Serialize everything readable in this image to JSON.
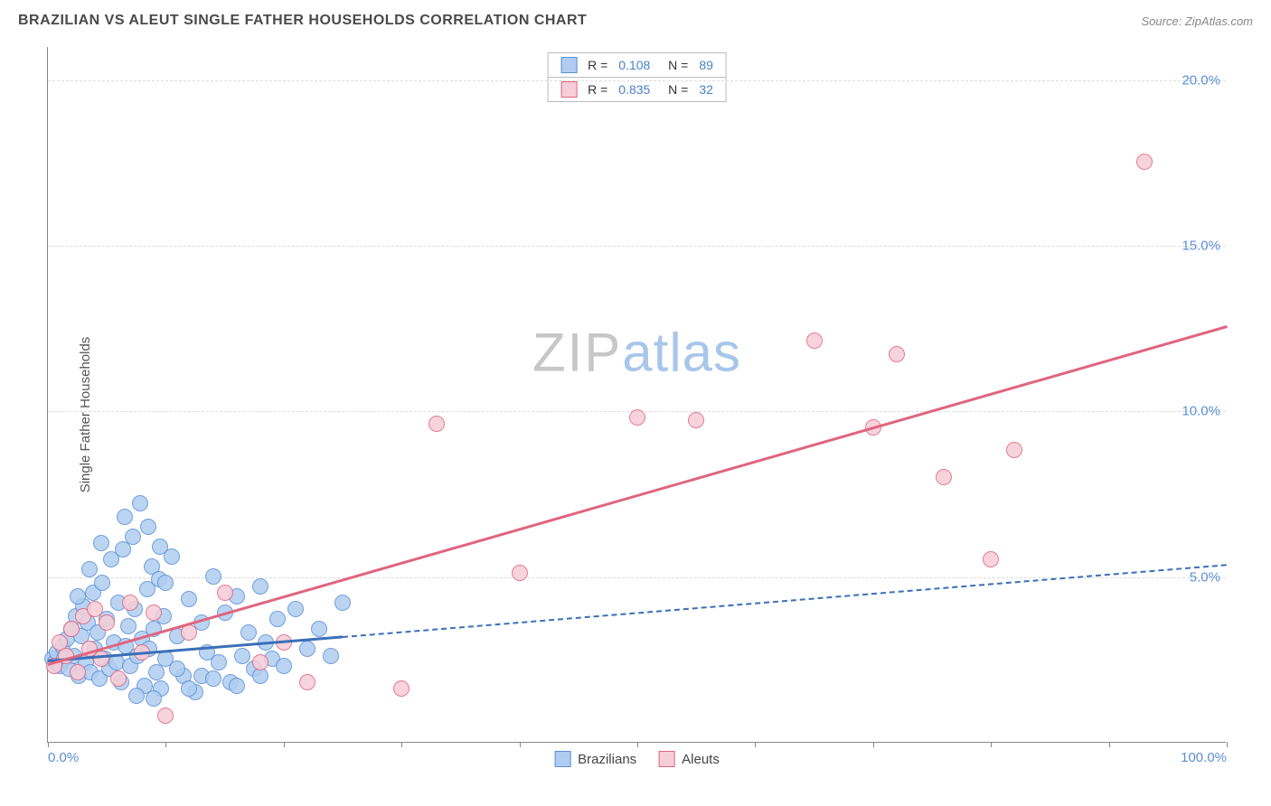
{
  "title": "BRAZILIAN VS ALEUT SINGLE FATHER HOUSEHOLDS CORRELATION CHART",
  "source": "Source: ZipAtlas.com",
  "ylabel": "Single Father Households",
  "watermark": {
    "part1": "ZIP",
    "part2": "atlas"
  },
  "chart": {
    "type": "scatter",
    "background_color": "#ffffff",
    "grid_color": "#dddddd",
    "grid_dash": true,
    "axis_color": "#888888",
    "label_color": "#5b8fd6",
    "label_fontsize": 15,
    "xlim": [
      0,
      100
    ],
    "ylim": [
      0,
      21
    ],
    "xticks": [
      0,
      10,
      20,
      30,
      40,
      50,
      60,
      70,
      80,
      90,
      100
    ],
    "xtick_labels_shown": {
      "0": "0.0%",
      "100": "100.0%"
    },
    "yticks": [
      5,
      10,
      15,
      20
    ],
    "ytick_labels": {
      "5": "5.0%",
      "10": "10.0%",
      "15": "15.0%",
      "20": "20.0%"
    },
    "marker_radius": 9,
    "marker_stroke_width": 1.5,
    "marker_fill_opacity": 0.3,
    "series": [
      {
        "name": "Brazilians",
        "color_fill": "#aecdf0",
        "color_stroke": "#5b8fd6",
        "R": "0.108",
        "N": "89",
        "trendline": {
          "x1": 0,
          "y1": 2.5,
          "x2": 100,
          "y2": 5.4,
          "color": "#3b6fb8",
          "width": 2.5,
          "solid_until_x": 25
        },
        "points": [
          [
            0.4,
            2.5
          ],
          [
            0.6,
            2.4
          ],
          [
            0.8,
            2.7
          ],
          [
            1.0,
            2.3
          ],
          [
            1.2,
            2.9
          ],
          [
            1.4,
            2.5
          ],
          [
            1.6,
            3.1
          ],
          [
            1.8,
            2.2
          ],
          [
            2.0,
            3.4
          ],
          [
            2.2,
            2.6
          ],
          [
            2.4,
            3.8
          ],
          [
            2.6,
            2.0
          ],
          [
            2.8,
            3.2
          ],
          [
            3.0,
            4.1
          ],
          [
            3.2,
            2.4
          ],
          [
            3.4,
            3.6
          ],
          [
            3.6,
            2.1
          ],
          [
            3.8,
            4.5
          ],
          [
            4.0,
            2.8
          ],
          [
            4.2,
            3.3
          ],
          [
            4.4,
            1.9
          ],
          [
            4.6,
            4.8
          ],
          [
            4.8,
            2.5
          ],
          [
            5.0,
            3.7
          ],
          [
            5.2,
            2.2
          ],
          [
            5.4,
            5.5
          ],
          [
            5.6,
            3.0
          ],
          [
            5.8,
            2.4
          ],
          [
            6.0,
            4.2
          ],
          [
            6.2,
            1.8
          ],
          [
            6.4,
            5.8
          ],
          [
            6.6,
            2.9
          ],
          [
            6.8,
            3.5
          ],
          [
            7.0,
            2.3
          ],
          [
            7.2,
            6.2
          ],
          [
            7.4,
            4.0
          ],
          [
            7.6,
            2.6
          ],
          [
            7.8,
            7.2
          ],
          [
            8.0,
            3.1
          ],
          [
            8.2,
            1.7
          ],
          [
            8.4,
            4.6
          ],
          [
            8.6,
            2.8
          ],
          [
            8.8,
            5.3
          ],
          [
            9.0,
            3.4
          ],
          [
            9.2,
            2.1
          ],
          [
            9.4,
            4.9
          ],
          [
            9.6,
            1.6
          ],
          [
            9.8,
            3.8
          ],
          [
            10.0,
            2.5
          ],
          [
            10.5,
            5.6
          ],
          [
            11.0,
            3.2
          ],
          [
            11.5,
            2.0
          ],
          [
            12.0,
            4.3
          ],
          [
            12.5,
            1.5
          ],
          [
            13.0,
            3.6
          ],
          [
            13.5,
            2.7
          ],
          [
            14.0,
            5.0
          ],
          [
            14.5,
            2.4
          ],
          [
            15.0,
            3.9
          ],
          [
            15.5,
            1.8
          ],
          [
            16.0,
            4.4
          ],
          [
            16.5,
            2.6
          ],
          [
            17.0,
            3.3
          ],
          [
            17.5,
            2.2
          ],
          [
            18.0,
            4.7
          ],
          [
            18.5,
            3.0
          ],
          [
            19.0,
            2.5
          ],
          [
            19.5,
            3.7
          ],
          [
            20.0,
            2.3
          ],
          [
            21.0,
            4.0
          ],
          [
            22.0,
            2.8
          ],
          [
            23.0,
            3.4
          ],
          [
            24.0,
            2.6
          ],
          [
            25.0,
            4.2
          ],
          [
            6.5,
            6.8
          ],
          [
            7.5,
            1.4
          ],
          [
            4.5,
            6.0
          ],
          [
            3.5,
            5.2
          ],
          [
            2.5,
            4.4
          ],
          [
            8.5,
            6.5
          ],
          [
            12.0,
            1.6
          ],
          [
            10.0,
            4.8
          ],
          [
            9.0,
            1.3
          ],
          [
            11.0,
            2.2
          ],
          [
            13.0,
            2.0
          ],
          [
            16.0,
            1.7
          ],
          [
            18.0,
            2.0
          ],
          [
            14.0,
            1.9
          ],
          [
            9.5,
            5.9
          ]
        ]
      },
      {
        "name": "Aleuts",
        "color_fill": "#f6cdd8",
        "color_stroke": "#e0657f",
        "R": "0.835",
        "N": "32",
        "trendline": {
          "x1": 0,
          "y1": 2.4,
          "x2": 100,
          "y2": 12.6,
          "color": "#e0657f",
          "width": 2.5,
          "solid_until_x": 100
        },
        "points": [
          [
            0.5,
            2.3
          ],
          [
            1.0,
            3.0
          ],
          [
            1.5,
            2.6
          ],
          [
            2.0,
            3.4
          ],
          [
            2.5,
            2.1
          ],
          [
            3.0,
            3.8
          ],
          [
            3.5,
            2.8
          ],
          [
            4.0,
            4.0
          ],
          [
            4.5,
            2.5
          ],
          [
            5.0,
            3.6
          ],
          [
            6.0,
            1.9
          ],
          [
            7.0,
            4.2
          ],
          [
            8.0,
            2.7
          ],
          [
            9.0,
            3.9
          ],
          [
            10.0,
            0.8
          ],
          [
            12.0,
            3.3
          ],
          [
            15.0,
            4.5
          ],
          [
            18.0,
            2.4
          ],
          [
            20.0,
            3.0
          ],
          [
            22.0,
            1.8
          ],
          [
            30.0,
            1.6
          ],
          [
            33.0,
            9.6
          ],
          [
            40.0,
            5.1
          ],
          [
            50.0,
            9.8
          ],
          [
            55.0,
            9.7
          ],
          [
            65.0,
            12.1
          ],
          [
            70.0,
            9.5
          ],
          [
            72.0,
            11.7
          ],
          [
            76.0,
            8.0
          ],
          [
            80.0,
            5.5
          ],
          [
            82.0,
            8.8
          ],
          [
            93.0,
            17.5
          ]
        ]
      }
    ]
  },
  "legend_bottom": [
    {
      "label": "Brazilians",
      "fill": "#aecdf0",
      "stroke": "#5b8fd6"
    },
    {
      "label": "Aleuts",
      "fill": "#f6cdd8",
      "stroke": "#e0657f"
    }
  ]
}
